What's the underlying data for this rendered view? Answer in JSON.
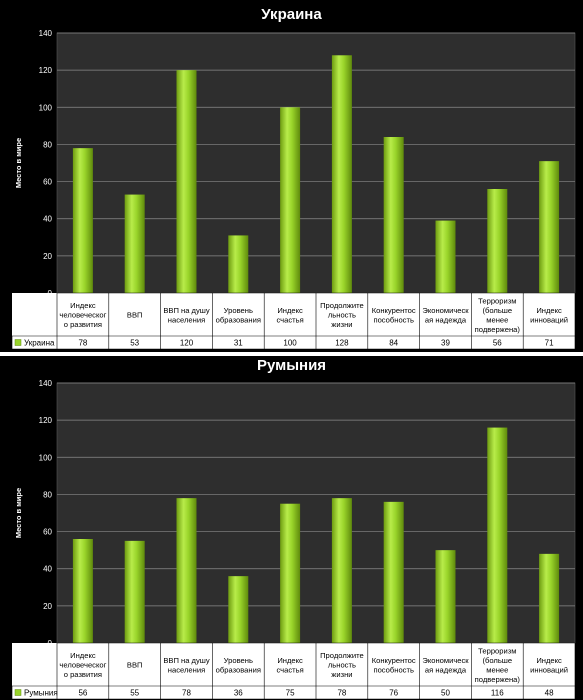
{
  "chart_data": [
    {
      "type": "bar",
      "title": "Украина",
      "ylabel": "Место в мире",
      "ylim": [
        0,
        140
      ],
      "yticks": [
        0,
        20,
        40,
        60,
        80,
        100,
        120,
        140
      ],
      "grid": true,
      "bar_color": "#99d42a",
      "categories": [
        [
          "Индекс",
          "человеческог",
          "о развития"
        ],
        [
          "ВВП"
        ],
        [
          "ВВП на душу",
          "населения"
        ],
        [
          "Уровень",
          "образования"
        ],
        [
          "Индекс",
          "счастья"
        ],
        [
          "Продолжите",
          "льность",
          "жизни"
        ],
        [
          "Конкурентос",
          "пособность"
        ],
        [
          "Экономическ",
          "ая надежда"
        ],
        [
          "Терроризм",
          "(больше",
          "менее",
          "подвержена)"
        ],
        [
          "Индекс",
          "инноваций"
        ]
      ],
      "series": [
        {
          "name": "Украина",
          "values": [
            78,
            53,
            120,
            31,
            100,
            128,
            84,
            39,
            56,
            71
          ]
        }
      ]
    },
    {
      "type": "bar",
      "title": "Румыния",
      "ylabel": "Место в мире",
      "ylim": [
        0,
        140
      ],
      "yticks": [
        0,
        20,
        40,
        60,
        80,
        100,
        120,
        140
      ],
      "grid": true,
      "bar_color": "#99d42a",
      "categories": [
        [
          "Индекс",
          "человеческог",
          "о развития"
        ],
        [
          "ВВП"
        ],
        [
          "ВВП на душу",
          "населения"
        ],
        [
          "Уровень",
          "образования"
        ],
        [
          "Индекс",
          "счастья"
        ],
        [
          "Продолжите",
          "льность",
          "жизни"
        ],
        [
          "Конкурентос",
          "пособность"
        ],
        [
          "Экономическ",
          "ая надежда"
        ],
        [
          "Терроризм",
          "(больше",
          "менее",
          "подвержена)"
        ],
        [
          "Индекс",
          "инноваций"
        ]
      ],
      "series": [
        {
          "name": "Румыния",
          "values": [
            56,
            55,
            78,
            36,
            75,
            78,
            76,
            50,
            116,
            48
          ]
        }
      ]
    }
  ]
}
